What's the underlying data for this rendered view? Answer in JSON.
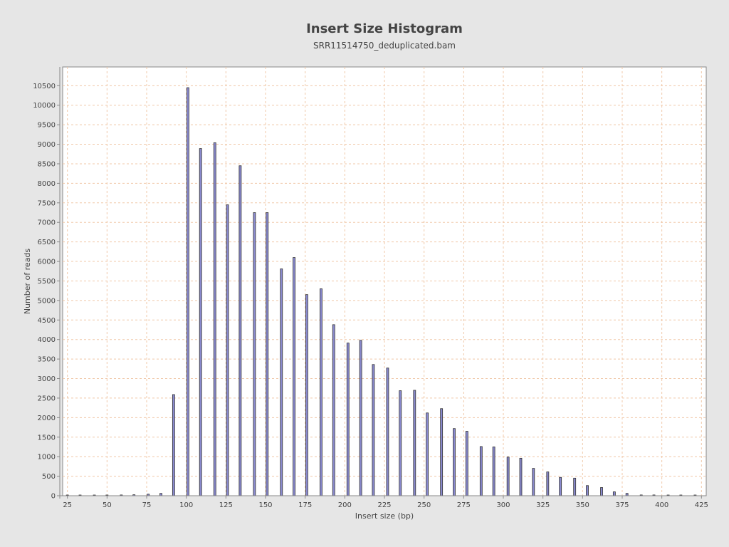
{
  "chart_data": {
    "type": "bar",
    "title": "Insert Size Histogram",
    "subtitle": "SRR11514750_deduplicated.bam",
    "xlabel": "Insert size (bp)",
    "ylabel": "Number of reads",
    "xlim": [
      22,
      428
    ],
    "ylim": [
      0,
      10980
    ],
    "xticks": [
      25,
      50,
      75,
      100,
      125,
      150,
      175,
      200,
      225,
      250,
      275,
      300,
      325,
      350,
      375,
      400,
      425
    ],
    "yticks": [
      0,
      500,
      1000,
      1500,
      2000,
      2500,
      3000,
      3500,
      4000,
      4500,
      5000,
      5500,
      6000,
      6500,
      7000,
      7500,
      8000,
      8500,
      9000,
      9500,
      10000,
      10500
    ],
    "grid": true,
    "legend": "none",
    "colors": {
      "bar_fill": "#8a8ad0",
      "bar_stroke": "#333333",
      "grid": "#f0c8a8",
      "plot_bg": "#ffffff",
      "page_bg": "#e6e6e6"
    },
    "series": [
      {
        "x": [
          25,
          33,
          42,
          50,
          59,
          67,
          76,
          84,
          92,
          101,
          109,
          118,
          126,
          134,
          143,
          151,
          160,
          168,
          176,
          185,
          193,
          202,
          210,
          218,
          227,
          235,
          244,
          252,
          261,
          269,
          277,
          286,
          294,
          303,
          311,
          319,
          328,
          336,
          345,
          353,
          362,
          370,
          378,
          387,
          395,
          404,
          412,
          421
        ],
        "values": [
          5,
          5,
          5,
          15,
          20,
          25,
          40,
          60,
          2590,
          10450,
          8890,
          9040,
          7450,
          8450,
          7250,
          7250,
          5810,
          6100,
          5150,
          5300,
          4380,
          3910,
          3980,
          3360,
          3270,
          2690,
          2700,
          2120,
          2230,
          1720,
          1650,
          1260,
          1250,
          990,
          960,
          700,
          610,
          470,
          450,
          260,
          210,
          100,
          60,
          20,
          20,
          10,
          5,
          5
        ]
      }
    ]
  }
}
